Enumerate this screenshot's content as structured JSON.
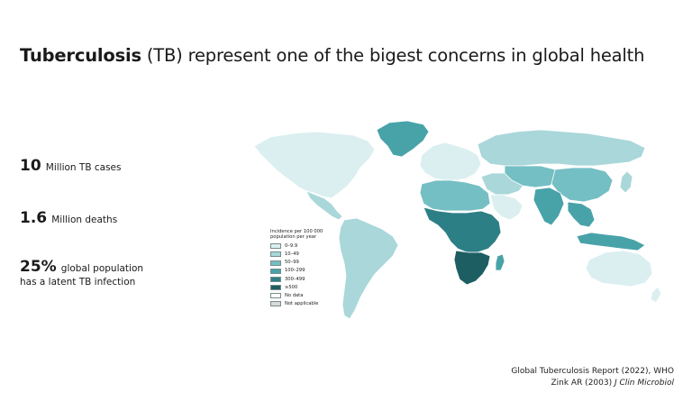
{
  "title": {
    "bold": "Tuberculosis",
    "rest": " (TB) represent one of the bigest concerns in global health"
  },
  "stats": [
    {
      "value": "10",
      "text": "Million TB cases",
      "text2": ""
    },
    {
      "value": "1.6",
      "text": "Million deaths",
      "text2": ""
    },
    {
      "value": "25%",
      "text": "global population",
      "text2": "has a latent TB infection"
    }
  ],
  "legend": {
    "title": "Incidence per 100 000 population per year",
    "items": [
      {
        "label": "0–9.9",
        "color": "#dbeff0"
      },
      {
        "label": "10–49",
        "color": "#a9d7da"
      },
      {
        "label": "50–99",
        "color": "#74bfc4"
      },
      {
        "label": "100–299",
        "color": "#48a3a9"
      },
      {
        "label": "300–499",
        "color": "#2d7f86"
      },
      {
        "label": "≥500",
        "color": "#1d5e63"
      },
      {
        "label": "No data",
        "color": "#ffffff"
      },
      {
        "label": "Not applicable",
        "color": "#d9d9d9"
      }
    ]
  },
  "sources": {
    "line1": "Global Tuberculosis Report (2022), WHO",
    "line2_prefix": "Zink AR (2003) ",
    "line2_journal": "J Clin Microbiol"
  },
  "map": {
    "regions": [
      {
        "name": "greenland",
        "color": "#48a3a9"
      },
      {
        "name": "north-america",
        "color": "#dbeff0"
      },
      {
        "name": "central-america",
        "color": "#a9d7da"
      },
      {
        "name": "south-america",
        "color": "#a9d7da"
      },
      {
        "name": "europe",
        "color": "#dbeff0"
      },
      {
        "name": "north-africa",
        "color": "#74bfc4"
      },
      {
        "name": "sub-saharan-africa",
        "color": "#2d7f86"
      },
      {
        "name": "southern-africa",
        "color": "#1d5e63"
      },
      {
        "name": "madagascar",
        "color": "#48a3a9"
      },
      {
        "name": "middle-east",
        "color": "#a9d7da"
      },
      {
        "name": "arabian-peninsula",
        "color": "#dbeff0"
      },
      {
        "name": "russia",
        "color": "#a9d7da"
      },
      {
        "name": "central-asia",
        "color": "#74bfc4"
      },
      {
        "name": "china",
        "color": "#74bfc4"
      },
      {
        "name": "india",
        "color": "#48a3a9"
      },
      {
        "name": "southeast-asia",
        "color": "#48a3a9"
      },
      {
        "name": "indonesia",
        "color": "#48a3a9"
      },
      {
        "name": "japan",
        "color": "#a9d7da"
      },
      {
        "name": "australia",
        "color": "#dbeff0"
      },
      {
        "name": "new-zealand",
        "color": "#dbeff0"
      }
    ]
  }
}
